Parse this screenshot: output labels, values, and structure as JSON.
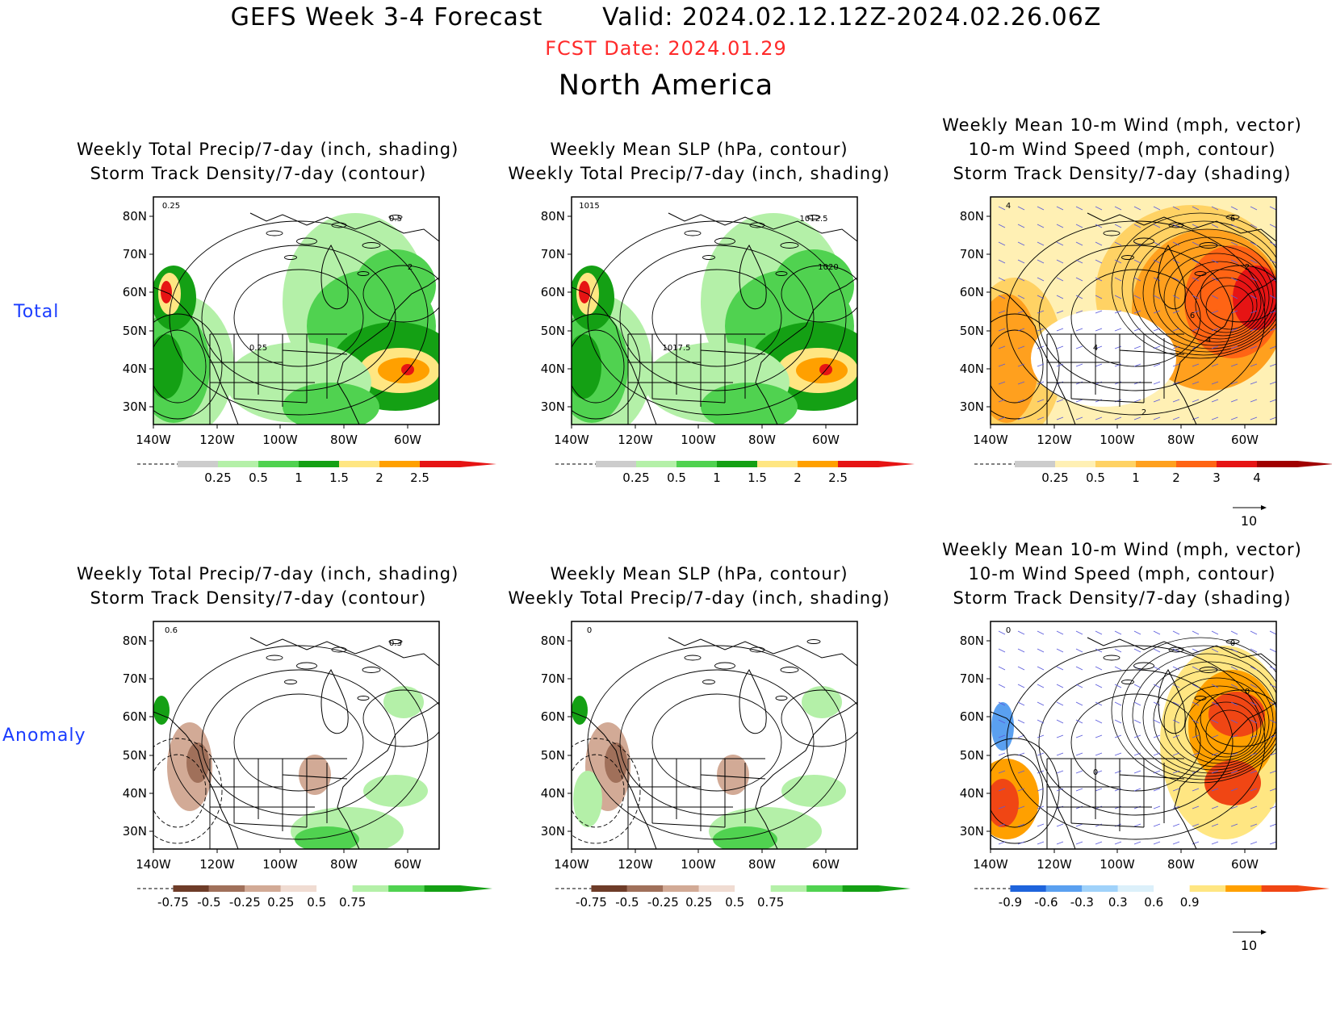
{
  "header": {
    "title": "GEFS Week 3-4 Forecast       Valid: 2024.02.12.12Z-2024.02.26.06Z",
    "fcst_date": "FCST Date: 2024.01.29",
    "region": "North America"
  },
  "rows": [
    {
      "label": "Total"
    },
    {
      "label": "Anomaly"
    }
  ],
  "panels": [
    {
      "row": 0,
      "col": 0,
      "title_lines": [
        "Weekly Total Precip/7-day (inch, shading)",
        "Storm Track Density/7-day (contour)"
      ],
      "contour_labels": [
        "0.25",
        "0.5",
        "2",
        "0.25"
      ],
      "colorbar": {
        "labels": [
          "0.25",
          "0.5",
          "1",
          "1.5",
          "2",
          "2.5"
        ],
        "colors": [
          "#cccccc",
          "#b4f0a8",
          "#50d250",
          "#14a014",
          "#ffe682",
          "#ffa000",
          "#e61414"
        ]
      }
    },
    {
      "row": 0,
      "col": 1,
      "title_lines": [
        "Weekly Mean SLP (hPa, contour)",
        "Weekly Total Precip/7-day (inch, shading)"
      ],
      "contour_labels": [
        "1015",
        "1012.5",
        "1020",
        "1017.5"
      ],
      "colorbar": {
        "labels": [
          "0.25",
          "0.5",
          "1",
          "1.5",
          "2",
          "2.5"
        ],
        "colors": [
          "#cccccc",
          "#b4f0a8",
          "#50d250",
          "#14a014",
          "#ffe682",
          "#ffa000",
          "#e61414"
        ]
      }
    },
    {
      "row": 0,
      "col": 2,
      "title_lines": [
        "Weekly Mean 10-m Wind (mph, vector)",
        "10-m Wind Speed (mph, contour)",
        "Storm Track Density/7-day (shading)"
      ],
      "contour_labels": [
        "4",
        "6",
        "2",
        "4",
        "6",
        "4",
        "2"
      ],
      "colorbar": {
        "labels": [
          "0.25",
          "0.5",
          "1",
          "2",
          "3",
          "4"
        ],
        "colors": [
          "#cccccc",
          "#fff0b4",
          "#ffd264",
          "#ffa01e",
          "#ff6414",
          "#e61414",
          "#a00000"
        ]
      },
      "vector_ref": "10"
    },
    {
      "row": 1,
      "col": 0,
      "title_lines": [
        "Weekly Total Precip/7-day (inch, shading)",
        "Storm Track Density/7-day (contour)"
      ],
      "contour_labels": [
        "0.6",
        "0.3"
      ],
      "colorbar": {
        "labels": [
          "-0.75",
          "-0.5",
          "-0.25",
          "0.25",
          "0.5",
          "0.75"
        ],
        "colors": [
          "#6e3c28",
          "#a0705a",
          "#d2aa96",
          "#f0dcd2",
          "#ffffff",
          "#b4f0a8",
          "#50d250",
          "#14a014"
        ]
      }
    },
    {
      "row": 1,
      "col": 1,
      "title_lines": [
        "Weekly Mean SLP (hPa, contour)",
        "Weekly Total Precip/7-day (inch, shading)"
      ],
      "contour_labels": [
        "0"
      ],
      "colorbar": {
        "labels": [
          "-0.75",
          "-0.5",
          "-0.25",
          "0.25",
          "0.5",
          "0.75"
        ],
        "colors": [
          "#6e3c28",
          "#a0705a",
          "#d2aa96",
          "#f0dcd2",
          "#ffffff",
          "#b4f0a8",
          "#50d250",
          "#14a014"
        ]
      }
    },
    {
      "row": 1,
      "col": 2,
      "title_lines": [
        "Weekly Mean 10-m Wind (mph, vector)",
        "10-m Wind Speed (mph, contour)",
        "Storm Track Density/7-day (shading)"
      ],
      "contour_labels": [
        "0",
        "0",
        "0",
        "0"
      ],
      "colorbar": {
        "labels": [
          "-0.9",
          "-0.6",
          "-0.3",
          "0.3",
          "0.6",
          "0.9"
        ],
        "colors": [
          "#1e64dc",
          "#5aa0f0",
          "#a0d2fa",
          "#dcf0fa",
          "#ffffff",
          "#ffe682",
          "#ffa000",
          "#f04614"
        ]
      },
      "vector_ref": "10"
    }
  ],
  "map_axes": {
    "lat_labels": [
      "80N",
      "70N",
      "60N",
      "50N",
      "40N",
      "30N"
    ],
    "lon_labels": [
      "140W",
      "120W",
      "100W",
      "80W",
      "60W"
    ]
  }
}
